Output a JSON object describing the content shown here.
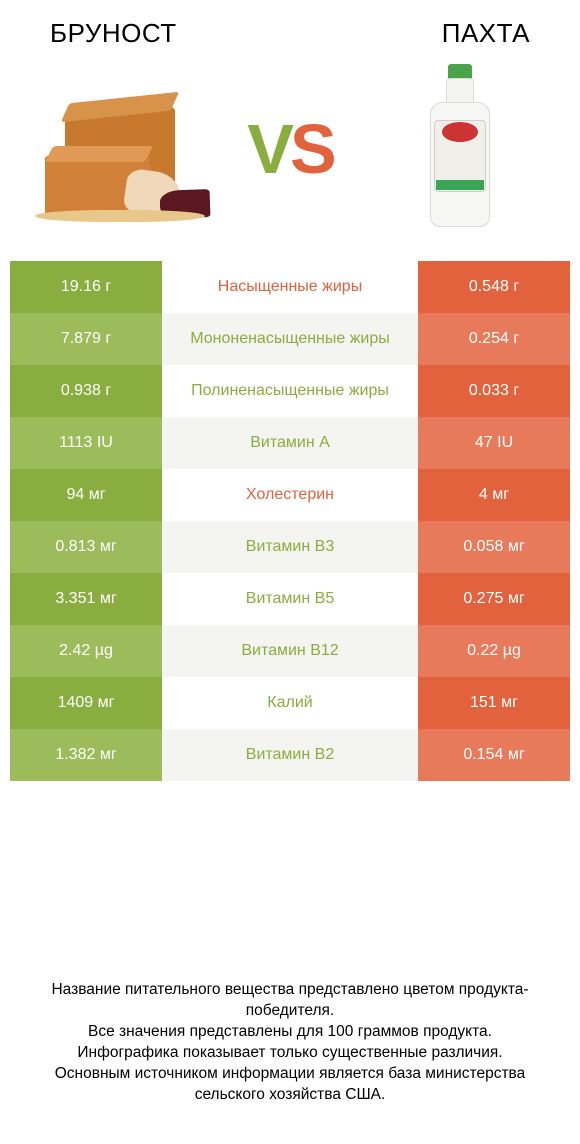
{
  "header": {
    "left_title": "БРУНОСТ",
    "right_title": "ПАХТА"
  },
  "vs": {
    "v": "V",
    "s": "S"
  },
  "colors": {
    "left_winner": "#8aad3f",
    "left_alt": "#9cbb5a",
    "right_base": "#e2623e",
    "right_alt": "#e77a5b",
    "mid_bg_a": "#ffffff",
    "mid_bg_b": "#f4f4f0",
    "mid_text_left": "#8aad3f",
    "mid_text_right": "#e2623e"
  },
  "rows": [
    {
      "left": "19.16 г",
      "label": "Насыщенные жиры",
      "right": "0.548 г",
      "winner": "right"
    },
    {
      "left": "7.879 г",
      "label": "Мононенасыщенные жиры",
      "right": "0.254 г",
      "winner": "left"
    },
    {
      "left": "0.938 г",
      "label": "Полиненасыщенные жиры",
      "right": "0.033 г",
      "winner": "left"
    },
    {
      "left": "1113 IU",
      "label": "Витамин A",
      "right": "47 IU",
      "winner": "left"
    },
    {
      "left": "94 мг",
      "label": "Холестерин",
      "right": "4 мг",
      "winner": "right"
    },
    {
      "left": "0.813 мг",
      "label": "Витамин B3",
      "right": "0.058 мг",
      "winner": "left"
    },
    {
      "left": "3.351 мг",
      "label": "Витамин B5",
      "right": "0.275 мг",
      "winner": "left"
    },
    {
      "left": "2.42 µg",
      "label": "Витамин B12",
      "right": "0.22 µg",
      "winner": "left"
    },
    {
      "left": "1409 мг",
      "label": "Калий",
      "right": "151 мг",
      "winner": "left"
    },
    {
      "left": "1.382 мг",
      "label": "Витамин B2",
      "right": "0.154 мг",
      "winner": "left"
    }
  ],
  "footer": {
    "line1": "Название питательного вещества представлено цветом продукта-победителя.",
    "line2": "Все значения представлены для 100 граммов продукта.",
    "line3": "Инфографика показывает только существенные различия.",
    "line4": "Основным источником информации является база министерства сельского хозяйства США."
  }
}
